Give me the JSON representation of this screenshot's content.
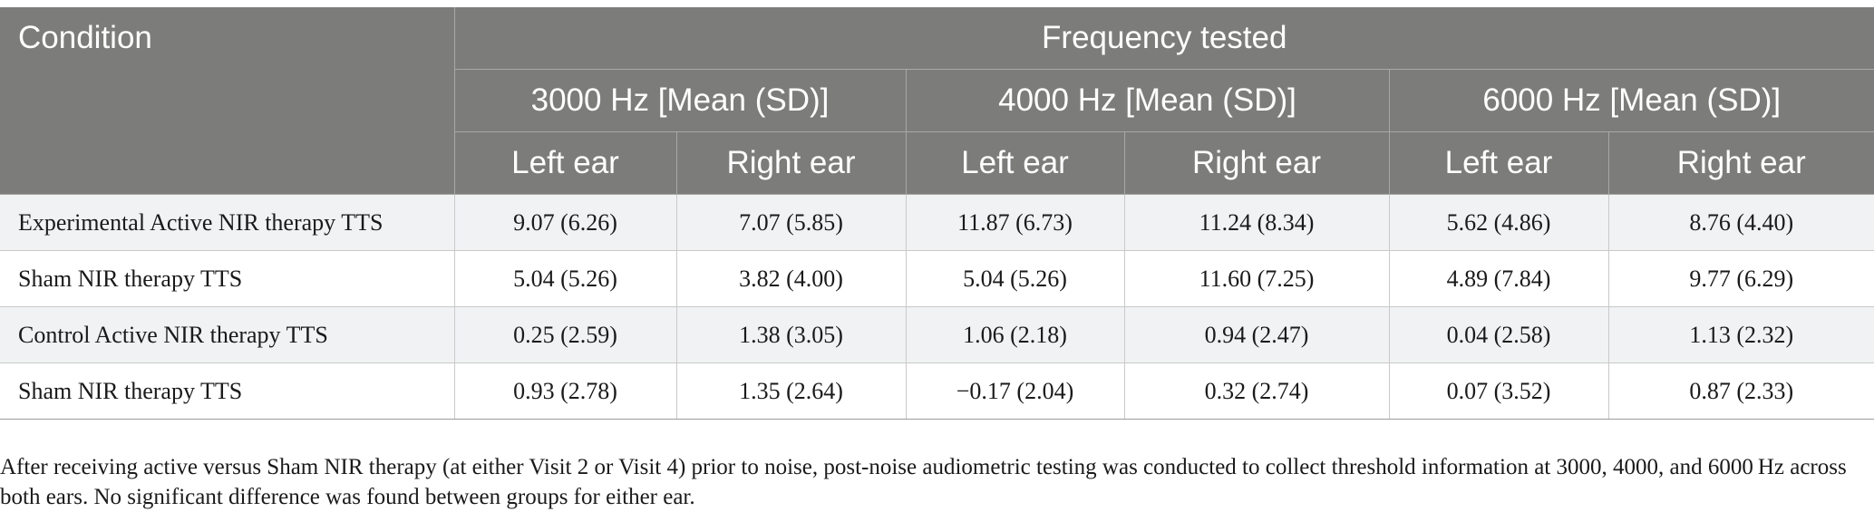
{
  "table": {
    "header": {
      "condition": "Condition",
      "frequency_tested": "Frequency tested",
      "groups": [
        "3000 Hz [Mean (SD)]",
        "4000 Hz [Mean (SD)]",
        "6000 Hz [Mean (SD)]"
      ],
      "ears": [
        "Left ear",
        "Right ear",
        "Left ear",
        "Right ear",
        "Left ear",
        "Right ear"
      ]
    },
    "rows": [
      {
        "condition": "Experimental Active NIR therapy TTS",
        "values": [
          "9.07 (6.26)",
          "7.07 (5.85)",
          "11.87 (6.73)",
          "11.24 (8.34)",
          "5.62 (4.86)",
          "8.76 (4.40)"
        ]
      },
      {
        "condition": "Sham NIR therapy TTS",
        "values": [
          "5.04 (5.26)",
          "3.82 (4.00)",
          "5.04 (5.26)",
          "11.60 (7.25)",
          "4.89 (7.84)",
          "9.77 (6.29)"
        ]
      },
      {
        "condition": "Control Active NIR therapy TTS",
        "values": [
          "0.25 (2.59)",
          "1.38 (3.05)",
          "1.06 (2.18)",
          "0.94 (2.47)",
          "0.04 (2.58)",
          "1.13 (2.32)"
        ]
      },
      {
        "condition": "Sham NIR therapy TTS",
        "values": [
          "0.93 (2.78)",
          "1.35 (2.64)",
          "−0.17 (2.04)",
          "0.32 (2.74)",
          "0.07 (3.52)",
          "0.87 (2.33)"
        ]
      }
    ]
  },
  "footnote": "After receiving active versus Sham NIR therapy (at either Visit 2 or Visit 4) prior to noise, post-noise audiometric testing was conducted to collect threshold information at 3000, 4000, and 6000 Hz across both ears. No significant difference was found between groups for either ear.",
  "colors": {
    "header_bg": "#7c7d7b",
    "header_text": "#ffffff",
    "row_alt_bg": "#f1f2f4"
  }
}
